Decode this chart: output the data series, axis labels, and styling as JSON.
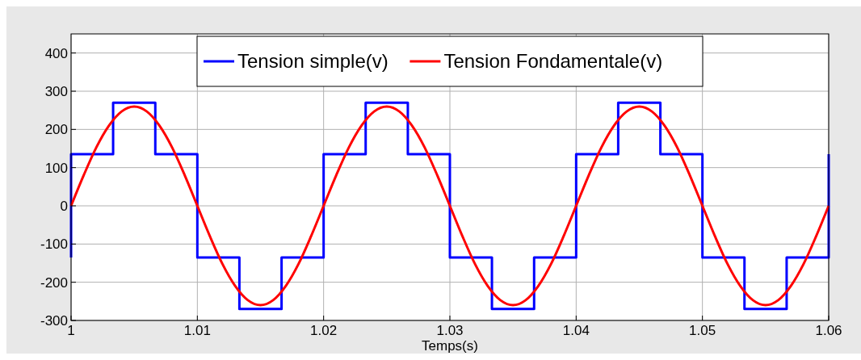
{
  "chart_data": {
    "type": "line",
    "xlabel": "Temps(s)",
    "xlim": [
      1,
      1.06
    ],
    "xticks": [
      1,
      1.01,
      1.02,
      1.03,
      1.04,
      1.05,
      1.06
    ],
    "ylim": [
      -300,
      450
    ],
    "yticks": [
      -300,
      -200,
      -100,
      0,
      100,
      200,
      300,
      400
    ],
    "grid": true,
    "legend": "top",
    "series": [
      {
        "name": "Tension simple(v)",
        "type": "step",
        "color": "#0000ff",
        "x": [
          1,
          1,
          1.00333,
          1.00667,
          1.01,
          1.01333,
          1.01667,
          1.02,
          1.02333,
          1.02667,
          1.03,
          1.03333,
          1.03667,
          1.04,
          1.04333,
          1.04667,
          1.05,
          1.05333,
          1.05667,
          1.06
        ],
        "values": [
          -135,
          135,
          270,
          135,
          -135,
          -270,
          -135,
          135,
          270,
          135,
          -135,
          -270,
          -135,
          135,
          270,
          135,
          -135,
          -270,
          -135,
          135
        ]
      },
      {
        "name": "Tension Fondamentale(v)",
        "type": "line",
        "color": "#ff0000",
        "x": [
          1,
          1.001,
          1.002,
          1.003,
          1.004,
          1.005,
          1.006,
          1.007,
          1.008,
          1.009,
          1.01,
          1.011,
          1.012,
          1.013,
          1.014,
          1.015,
          1.016,
          1.017,
          1.018,
          1.019,
          1.02,
          1.021,
          1.022,
          1.023,
          1.024,
          1.025,
          1.026,
          1.027,
          1.028,
          1.029,
          1.03,
          1.031,
          1.032,
          1.033,
          1.034,
          1.035,
          1.036,
          1.037,
          1.038,
          1.039,
          1.04,
          1.041,
          1.042,
          1.043,
          1.044,
          1.045,
          1.046,
          1.047,
          1.048,
          1.049,
          1.05,
          1.051,
          1.052,
          1.053,
          1.054,
          1.055,
          1.056,
          1.057,
          1.058,
          1.059,
          1.06
        ],
        "values": [
          0,
          80,
          153,
          210,
          247,
          260,
          247,
          210,
          153,
          80,
          0,
          -80,
          -153,
          -210,
          -247,
          -260,
          -247,
          -210,
          -153,
          -80,
          0,
          80,
          153,
          210,
          247,
          260,
          247,
          210,
          153,
          80,
          0,
          -80,
          -153,
          -210,
          -247,
          -260,
          -247,
          -210,
          -153,
          -80,
          0,
          80,
          153,
          210,
          247,
          260,
          247,
          210,
          153,
          80,
          0,
          -80,
          -153,
          -210,
          -247,
          -260,
          -247,
          -210,
          -153,
          -80,
          0
        ]
      }
    ]
  }
}
